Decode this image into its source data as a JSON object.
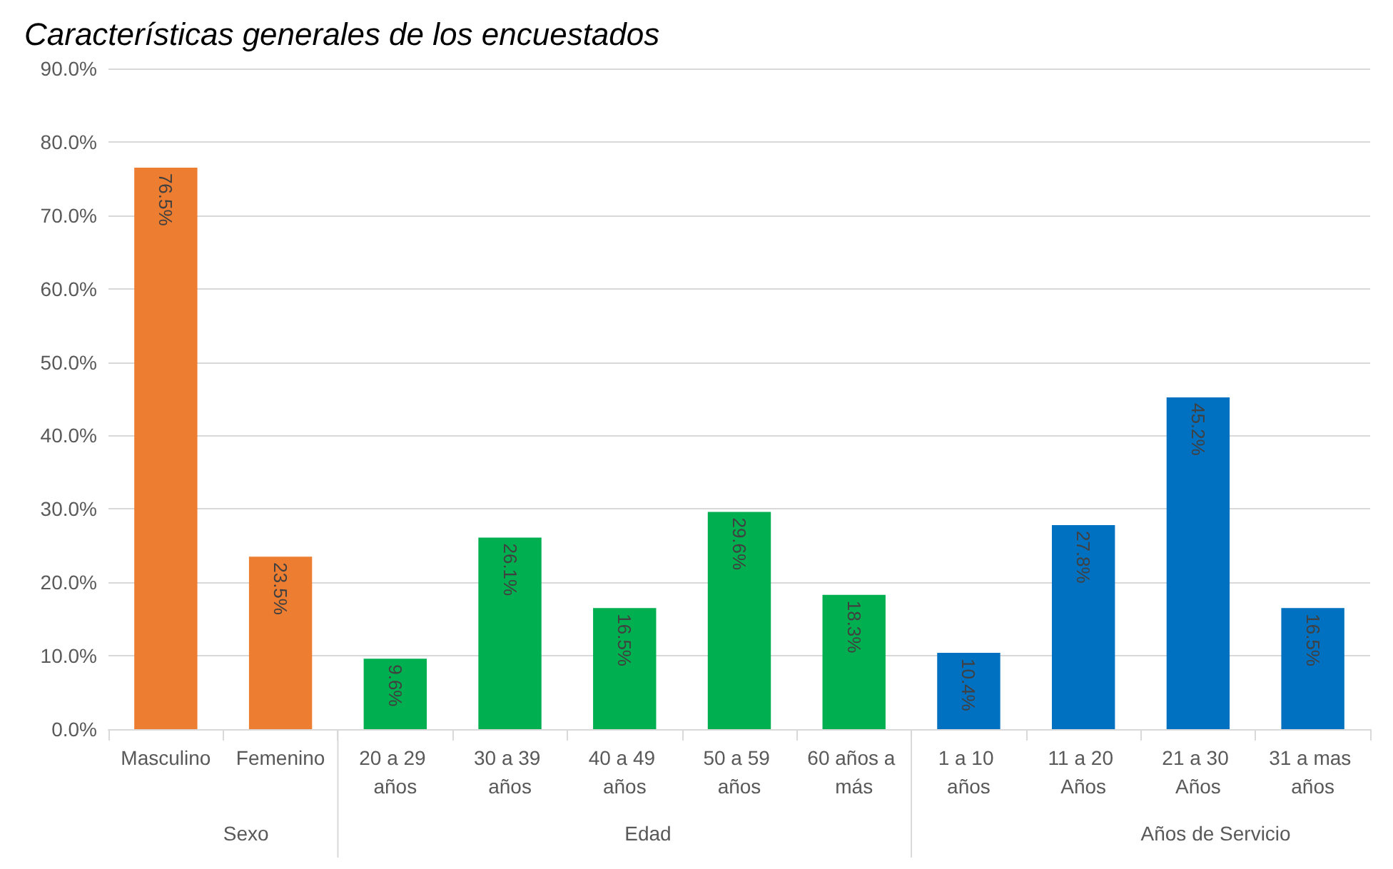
{
  "chart_data": {
    "type": "bar",
    "title": "Características generales de los encuestados",
    "categories": [
      "Masculino",
      "Femenino",
      "20 a 29 años",
      "30 a 39 años",
      "40 a 49 años",
      "50 a 59 años",
      "60 años a más",
      "1 a 10 años",
      "11 a 20 Años",
      "21 a 30 Años",
      "31 a mas años"
    ],
    "values": [
      76.5,
      23.5,
      9.6,
      26.1,
      16.5,
      29.6,
      18.3,
      10.4,
      27.8,
      45.2,
      16.5
    ],
    "value_labels": [
      "76.5%",
      "23.5%",
      "9.6%",
      "26.1%",
      "16.5%",
      "29.6%",
      "18.3%",
      "10.4%",
      "27.8%",
      "45.2%",
      "16.5%"
    ],
    "colors": [
      "#ed7d31",
      "#ed7d31",
      "#00b050",
      "#00b050",
      "#00b050",
      "#00b050",
      "#00b050",
      "#0070c0",
      "#0070c0",
      "#0070c0",
      "#0070c0"
    ],
    "ylim": [
      0,
      90
    ],
    "yticks": [
      {
        "value": 0,
        "label": "0.0%"
      },
      {
        "value": 10,
        "label": "10.0%"
      },
      {
        "value": 20,
        "label": "20.0%"
      },
      {
        "value": 30,
        "label": "30.0%"
      },
      {
        "value": 40,
        "label": "40.0%"
      },
      {
        "value": 50,
        "label": "50.0%"
      },
      {
        "value": 60,
        "label": "60.0%"
      },
      {
        "value": 70,
        "label": "70.0%"
      },
      {
        "value": 80,
        "label": "80.0%"
      },
      {
        "value": 90,
        "label": "90.0%"
      }
    ],
    "grid": "y",
    "annotations": [
      "Sexo",
      "Edad",
      "Años de Servicio"
    ]
  }
}
